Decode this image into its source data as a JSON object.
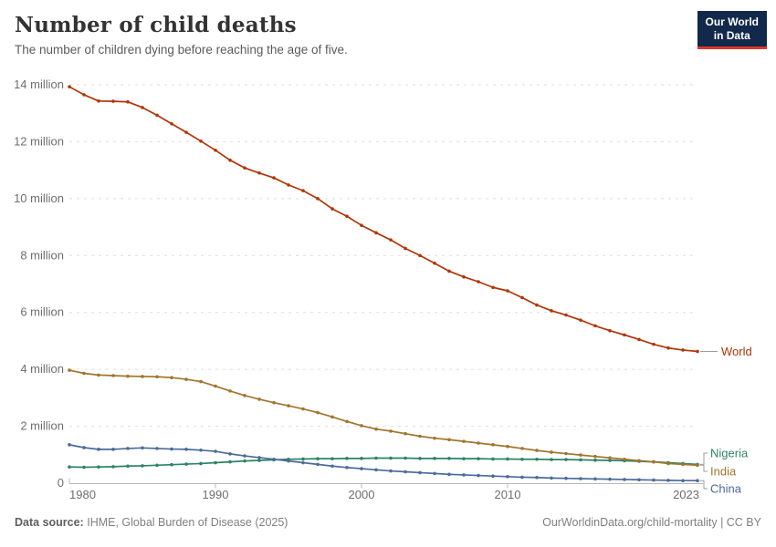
{
  "header": {
    "title": "Number of child deaths",
    "subtitle": "The number of children dying before reaching the age of five."
  },
  "logo": {
    "line1": "Our World",
    "line2": "in Data",
    "bg_color": "#12294B",
    "underline_color": "#E0352B"
  },
  "chart_data": {
    "type": "line",
    "title": "Number of child deaths",
    "subtitle": "The number of children dying before reaching the age of five.",
    "unit": "million deaths per year",
    "xlabel": "",
    "ylabel": "",
    "ylim": [
      0,
      14
    ],
    "grid": "dashed horizontal gridlines on",
    "legend_position": "end-of-line labels at right",
    "x": [
      1980,
      1981,
      1982,
      1983,
      1984,
      1985,
      1986,
      1987,
      1988,
      1989,
      1990,
      1991,
      1992,
      1993,
      1994,
      1995,
      1996,
      1997,
      1998,
      1999,
      2000,
      2001,
      2002,
      2003,
      2004,
      2005,
      2006,
      2007,
      2008,
      2009,
      2010,
      2011,
      2012,
      2013,
      2014,
      2015,
      2016,
      2017,
      2018,
      2019,
      2020,
      2021,
      2022,
      2023
    ],
    "series": [
      {
        "name": "World",
        "color": "#B13507",
        "values": [
          13.93,
          13.65,
          13.43,
          13.42,
          13.4,
          13.2,
          12.93,
          12.63,
          12.33,
          12.02,
          11.7,
          11.35,
          11.08,
          10.9,
          10.73,
          10.48,
          10.28,
          10.0,
          9.64,
          9.38,
          9.06,
          8.8,
          8.55,
          8.25,
          8.0,
          7.73,
          7.45,
          7.25,
          7.08,
          6.88,
          6.76,
          6.52,
          6.26,
          6.06,
          5.91,
          5.73,
          5.53,
          5.36,
          5.21,
          5.05,
          4.88,
          4.75,
          4.68,
          4.63
        ]
      },
      {
        "name": "Nigeria",
        "color": "#2C8465",
        "values": [
          0.57,
          0.56,
          0.57,
          0.58,
          0.6,
          0.61,
          0.63,
          0.65,
          0.67,
          0.69,
          0.72,
          0.75,
          0.78,
          0.8,
          0.82,
          0.84,
          0.85,
          0.86,
          0.86,
          0.87,
          0.87,
          0.88,
          0.88,
          0.88,
          0.87,
          0.87,
          0.87,
          0.86,
          0.86,
          0.85,
          0.85,
          0.84,
          0.84,
          0.83,
          0.83,
          0.82,
          0.81,
          0.8,
          0.79,
          0.77,
          0.75,
          0.72,
          0.69,
          0.66
        ]
      },
      {
        "name": "India",
        "color": "#A1752D",
        "values": [
          3.97,
          3.86,
          3.8,
          3.78,
          3.76,
          3.75,
          3.74,
          3.71,
          3.65,
          3.57,
          3.41,
          3.24,
          3.08,
          2.95,
          2.83,
          2.72,
          2.61,
          2.48,
          2.33,
          2.17,
          2.02,
          1.9,
          1.83,
          1.74,
          1.65,
          1.58,
          1.53,
          1.47,
          1.41,
          1.35,
          1.29,
          1.22,
          1.15,
          1.09,
          1.04,
          0.99,
          0.94,
          0.89,
          0.84,
          0.79,
          0.75,
          0.69,
          0.66,
          0.63
        ]
      },
      {
        "name": "China",
        "color": "#4C6A9C",
        "values": [
          1.35,
          1.25,
          1.19,
          1.19,
          1.22,
          1.24,
          1.22,
          1.2,
          1.19,
          1.16,
          1.12,
          1.03,
          0.96,
          0.9,
          0.84,
          0.78,
          0.72,
          0.66,
          0.6,
          0.55,
          0.51,
          0.47,
          0.43,
          0.4,
          0.37,
          0.34,
          0.31,
          0.29,
          0.27,
          0.25,
          0.23,
          0.21,
          0.2,
          0.18,
          0.17,
          0.16,
          0.15,
          0.14,
          0.13,
          0.12,
          0.11,
          0.1,
          0.09,
          0.09
        ]
      }
    ],
    "yticks": {
      "values": [
        0,
        2,
        4,
        6,
        8,
        10,
        12,
        14
      ],
      "labels": [
        "0",
        "2 million",
        "4 million",
        "6 million",
        "8 million",
        "10 million",
        "12 million",
        "14 million"
      ]
    },
    "xticks": [
      1980,
      1990,
      2000,
      2010,
      2023
    ]
  },
  "footer": {
    "source_label": "Data source:",
    "source_value": "IHME, Global Burden of Disease (2025)",
    "credit": "OurWorldinData.org/child-mortality | CC BY"
  }
}
